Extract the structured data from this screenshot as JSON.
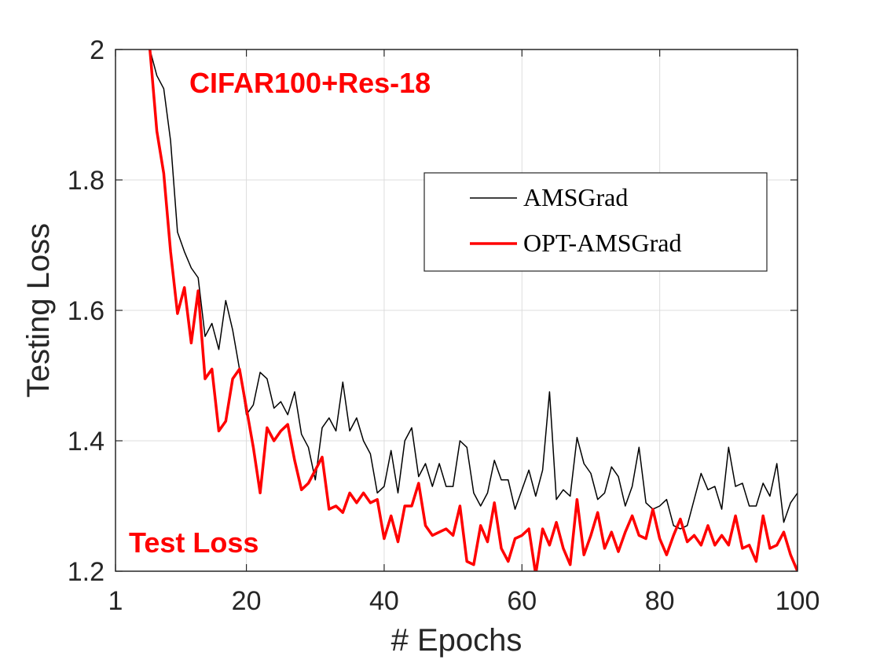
{
  "chart_data": {
    "type": "line",
    "title": "",
    "xlabel": "# Epochs",
    "ylabel": "Testing Loss",
    "xlim": [
      1,
      100
    ],
    "ylim": [
      1.2,
      2.0
    ],
    "xticks": [
      1,
      20,
      40,
      60,
      80,
      100
    ],
    "yticks": [
      1.2,
      1.4,
      1.6,
      1.8,
      2.0
    ],
    "xtick_labels": [
      "1",
      "20",
      "40",
      "60",
      "80",
      "100"
    ],
    "ytick_labels": [
      "1.2",
      "1.4",
      "1.6",
      "1.8",
      "2"
    ],
    "grid": true,
    "legend_position": "upper-right",
    "annotations": [
      "CIFAR100+Res-18",
      "Test Loss"
    ],
    "series": [
      {
        "name": "AMSGrad",
        "color": "#000000",
        "x": [
          6,
          7,
          8,
          9,
          10,
          11,
          12,
          13,
          14,
          15,
          16,
          17,
          18,
          19,
          20,
          21,
          22,
          23,
          24,
          25,
          26,
          27,
          28,
          29,
          30,
          31,
          32,
          33,
          34,
          35,
          36,
          37,
          38,
          39,
          40,
          41,
          42,
          43,
          44,
          45,
          46,
          47,
          48,
          49,
          50,
          51,
          52,
          53,
          54,
          55,
          56,
          57,
          58,
          59,
          60,
          61,
          62,
          63,
          64,
          65,
          66,
          67,
          68,
          69,
          70,
          71,
          72,
          73,
          74,
          75,
          76,
          77,
          78,
          79,
          80,
          81,
          82,
          83,
          84,
          85,
          86,
          87,
          88,
          89,
          90,
          91,
          92,
          93,
          94,
          95,
          96,
          97,
          98,
          99,
          100
        ],
        "y": [
          2.0,
          1.96,
          1.94,
          1.86,
          1.72,
          1.69,
          1.665,
          1.65,
          1.56,
          1.58,
          1.54,
          1.615,
          1.57,
          1.51,
          1.44,
          1.455,
          1.505,
          1.495,
          1.45,
          1.46,
          1.44,
          1.475,
          1.41,
          1.39,
          1.34,
          1.42,
          1.435,
          1.415,
          1.49,
          1.415,
          1.435,
          1.4,
          1.38,
          1.32,
          1.33,
          1.385,
          1.32,
          1.4,
          1.42,
          1.345,
          1.365,
          1.33,
          1.365,
          1.33,
          1.33,
          1.4,
          1.39,
          1.32,
          1.3,
          1.32,
          1.37,
          1.34,
          1.34,
          1.295,
          1.325,
          1.355,
          1.315,
          1.355,
          1.475,
          1.31,
          1.325,
          1.315,
          1.405,
          1.365,
          1.35,
          1.31,
          1.32,
          1.36,
          1.345,
          1.3,
          1.33,
          1.39,
          1.305,
          1.295,
          1.3,
          1.31,
          1.27,
          1.265,
          1.27,
          1.31,
          1.35,
          1.325,
          1.33,
          1.295,
          1.39,
          1.33,
          1.335,
          1.3,
          1.3,
          1.335,
          1.315,
          1.365,
          1.275,
          1.305,
          1.32
        ]
      },
      {
        "name": "OPT-AMSGrad",
        "color": "#ff0000",
        "x": [
          6,
          7,
          8,
          9,
          10,
          11,
          12,
          13,
          14,
          15,
          16,
          17,
          18,
          19,
          20,
          21,
          22,
          23,
          24,
          25,
          26,
          27,
          28,
          29,
          30,
          31,
          32,
          33,
          34,
          35,
          36,
          37,
          38,
          39,
          40,
          41,
          42,
          43,
          44,
          45,
          46,
          47,
          48,
          49,
          50,
          51,
          52,
          53,
          54,
          55,
          56,
          57,
          58,
          59,
          60,
          61,
          62,
          63,
          64,
          65,
          66,
          67,
          68,
          69,
          70,
          71,
          72,
          73,
          74,
          75,
          76,
          77,
          78,
          79,
          80,
          81,
          82,
          83,
          84,
          85,
          86,
          87,
          88,
          89,
          90,
          91,
          92,
          93,
          94,
          95,
          96,
          97,
          98,
          99,
          100
        ],
        "y": [
          2.0,
          1.875,
          1.81,
          1.69,
          1.595,
          1.635,
          1.55,
          1.63,
          1.495,
          1.51,
          1.415,
          1.43,
          1.495,
          1.51,
          1.45,
          1.39,
          1.32,
          1.42,
          1.4,
          1.415,
          1.425,
          1.37,
          1.325,
          1.335,
          1.355,
          1.375,
          1.295,
          1.3,
          1.29,
          1.32,
          1.305,
          1.32,
          1.305,
          1.31,
          1.25,
          1.285,
          1.245,
          1.3,
          1.3,
          1.335,
          1.27,
          1.255,
          1.26,
          1.265,
          1.255,
          1.3,
          1.215,
          1.21,
          1.27,
          1.245,
          1.305,
          1.235,
          1.215,
          1.25,
          1.255,
          1.265,
          1.195,
          1.265,
          1.24,
          1.275,
          1.235,
          1.21,
          1.31,
          1.225,
          1.255,
          1.29,
          1.235,
          1.26,
          1.23,
          1.26,
          1.285,
          1.255,
          1.25,
          1.295,
          1.25,
          1.225,
          1.255,
          1.28,
          1.245,
          1.255,
          1.24,
          1.27,
          1.24,
          1.255,
          1.24,
          1.285,
          1.235,
          1.24,
          1.215,
          1.285,
          1.235,
          1.24,
          1.26,
          1.225,
          1.2
        ]
      }
    ]
  }
}
